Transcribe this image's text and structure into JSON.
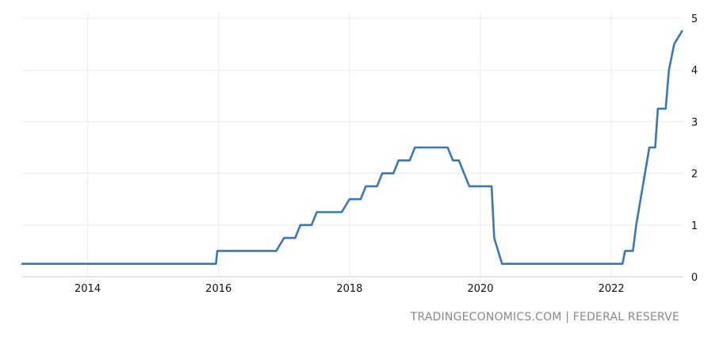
{
  "chart_data": {
    "type": "line",
    "title": "",
    "xlabel": "",
    "ylabel": "",
    "xlim": [
      2013.0,
      2023.1
    ],
    "ylim": [
      0,
      5
    ],
    "x_ticks": [
      2014,
      2016,
      2018,
      2020,
      2022
    ],
    "x_tick_labels": [
      "2014",
      "2016",
      "2018",
      "2020",
      "2022"
    ],
    "y_ticks": [
      0,
      1,
      2,
      3,
      4,
      5
    ],
    "y_tick_labels": [
      "0",
      "1",
      "2",
      "3",
      "4",
      "5"
    ],
    "grid": true,
    "y_axis_position": "right",
    "series": [
      {
        "color": "#3c78b0",
        "x": [
          2013.0,
          2015.96,
          2015.98,
          2016.88,
          2017.0,
          2017.17,
          2017.25,
          2017.42,
          2017.5,
          2017.88,
          2018.0,
          2018.17,
          2018.25,
          2018.42,
          2018.5,
          2018.67,
          2018.75,
          2018.92,
          2019.0,
          2019.5,
          2019.58,
          2019.67,
          2019.75,
          2019.83,
          2020.17,
          2020.21,
          2020.33,
          2022.17,
          2022.21,
          2022.33,
          2022.38,
          2022.58,
          2022.67,
          2022.71,
          2022.83,
          2022.88,
          2022.96,
          2023.08
        ],
        "y": [
          0.25,
          0.25,
          0.5,
          0.5,
          0.75,
          0.75,
          1.0,
          1.0,
          1.25,
          1.25,
          1.5,
          1.5,
          1.75,
          1.75,
          2.0,
          2.0,
          2.25,
          2.25,
          2.5,
          2.5,
          2.25,
          2.25,
          2.0,
          1.75,
          1.75,
          0.75,
          0.25,
          0.25,
          0.5,
          0.5,
          1.0,
          2.5,
          2.5,
          3.25,
          3.25,
          4.0,
          4.5,
          4.75
        ]
      }
    ]
  },
  "footer": {
    "source_text": "TRADINGECONOMICS.COM | FEDERAL RESERVE"
  }
}
